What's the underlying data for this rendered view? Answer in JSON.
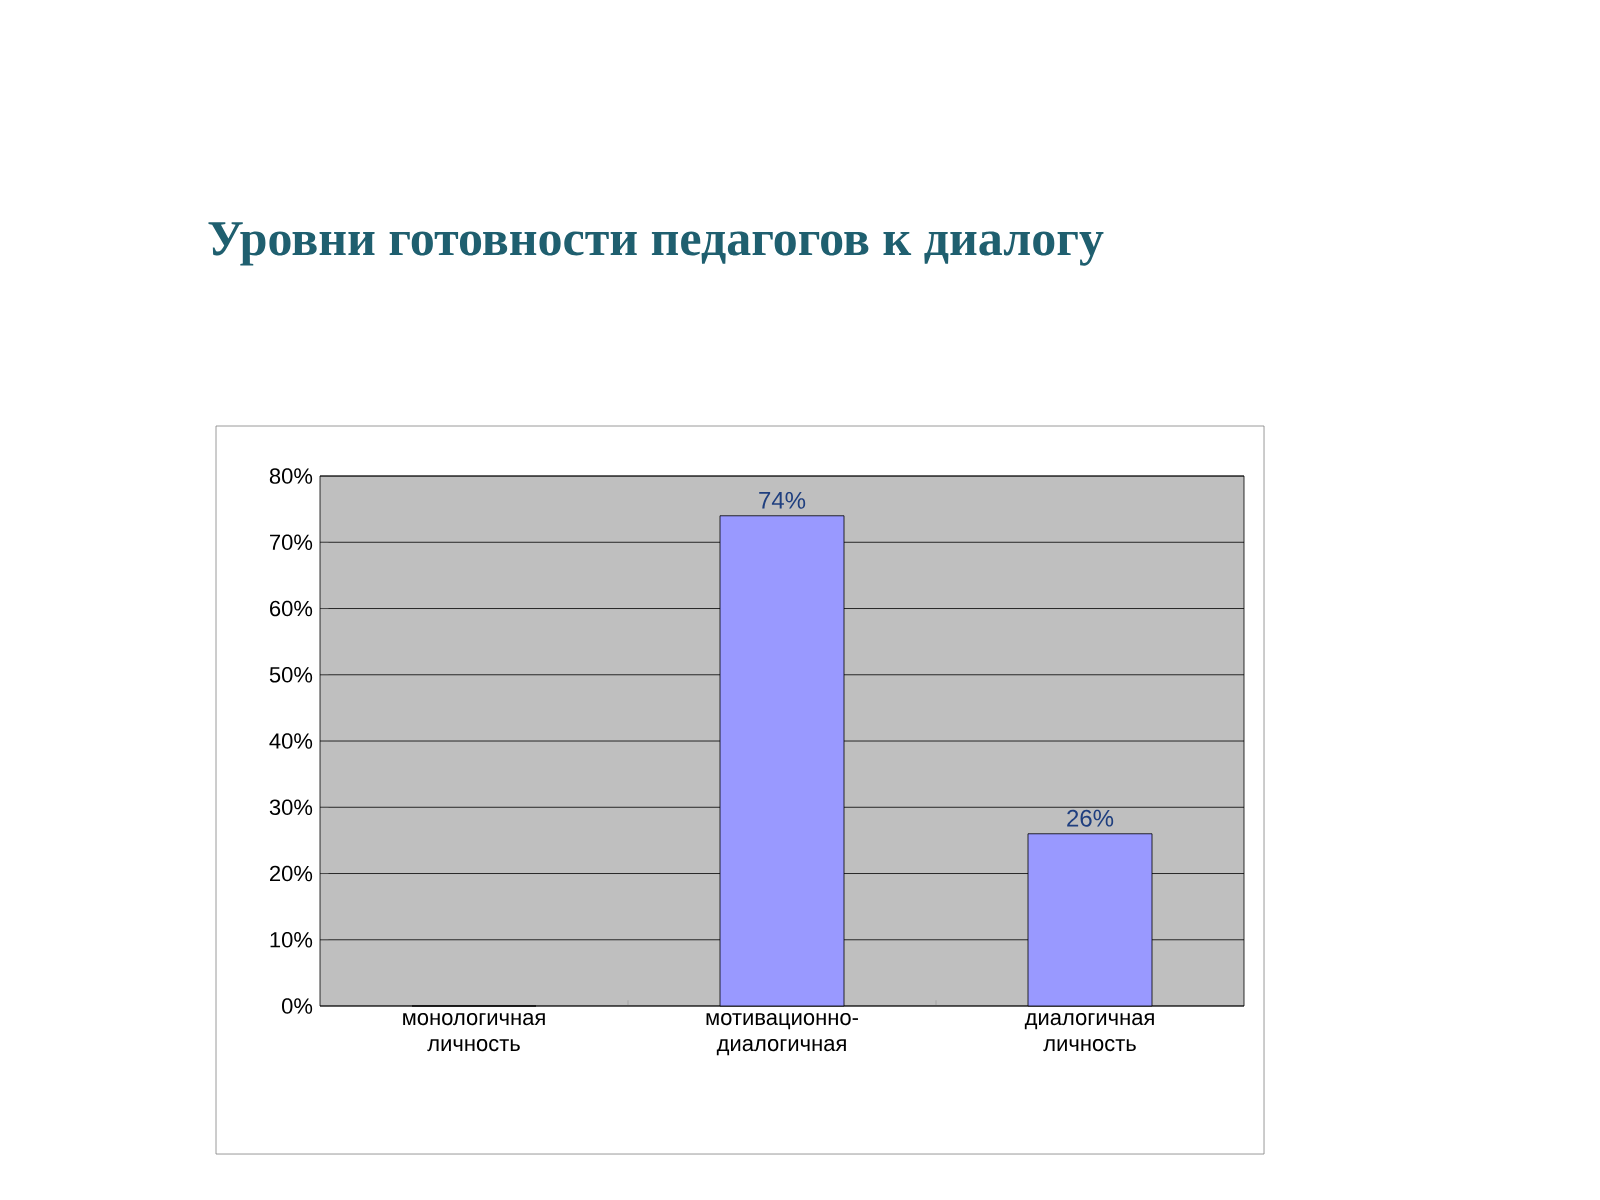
{
  "chart_data": {
    "type": "bar",
    "title": "Уровни  готовности педагогов к диалогу",
    "categories": [
      "монологичная личность",
      "мотивационно-диалогичная",
      "диалогичная личность"
    ],
    "values": [
      0,
      74,
      26
    ],
    "color": "#9999ff",
    "value_labels": [
      null,
      "74%",
      "26%"
    ],
    "ylim": [
      0,
      80
    ],
    "yticks": [
      {
        "value": 0,
        "label": "0%"
      },
      {
        "value": 10,
        "label": "10%"
      },
      {
        "value": 20,
        "label": "20%"
      },
      {
        "value": 30,
        "label": "30%"
      },
      {
        "value": 40,
        "label": "40%"
      },
      {
        "value": 50,
        "label": "50%"
      },
      {
        "value": 60,
        "label": "60%"
      },
      {
        "value": 70,
        "label": "70%"
      },
      {
        "value": 80,
        "label": "80%"
      }
    ],
    "grid": "y"
  }
}
